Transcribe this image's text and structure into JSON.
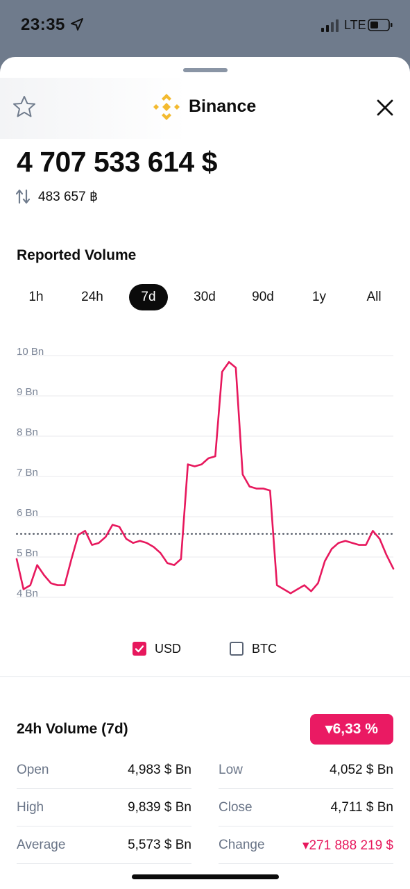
{
  "status_bar": {
    "time": "23:35",
    "network": "LTE"
  },
  "header": {
    "title": "Binance"
  },
  "summary": {
    "price": "4 707 533 614 $",
    "btc_amount": "483 657 ฿"
  },
  "chart_section": {
    "title": "Reported Volume",
    "ranges": [
      "1h",
      "24h",
      "7d",
      "30d",
      "90d",
      "1y",
      "All"
    ],
    "active_range": "7d"
  },
  "chart_data": {
    "type": "line",
    "ylabel": "",
    "ylim": [
      4,
      10
    ],
    "y_ticks": [
      "4 Bn",
      "5 Bn",
      "6 Bn",
      "7 Bn",
      "8 Bn",
      "9 Bn",
      "10 Bn"
    ],
    "reference_line": 5.573,
    "grid": true,
    "series": [
      {
        "name": "USD",
        "color": "#e7185d",
        "values": [
          4.95,
          4.2,
          4.3,
          4.8,
          4.55,
          4.35,
          4.3,
          4.3,
          4.95,
          5.55,
          5.65,
          5.3,
          5.35,
          5.5,
          5.8,
          5.75,
          5.45,
          5.35,
          5.4,
          5.35,
          5.25,
          5.1,
          4.85,
          4.8,
          4.95,
          7.3,
          7.25,
          7.3,
          7.45,
          7.5,
          9.6,
          9.84,
          9.7,
          7.05,
          6.75,
          6.7,
          6.7,
          6.65,
          4.3,
          4.2,
          4.1,
          4.2,
          4.3,
          4.15,
          4.35,
          4.9,
          5.2,
          5.35,
          5.4,
          5.35,
          5.3,
          5.3,
          5.65,
          5.45,
          5.05,
          4.71
        ]
      }
    ]
  },
  "legend": {
    "usd": {
      "label": "USD",
      "checked": true,
      "color": "#e7185d"
    },
    "btc": {
      "label": "BTC",
      "checked": false,
      "color": "#5a6475"
    }
  },
  "stats": {
    "title": "24h Volume (7d)",
    "change_pct": "▾6,33 %",
    "left": [
      {
        "label": "Open",
        "value": "4,983 $ Bn"
      },
      {
        "label": "High",
        "value": "9,839 $ Bn"
      },
      {
        "label": "Average",
        "value": "5,573 $ Bn"
      }
    ],
    "right": [
      {
        "label": "Low",
        "value": "4,052 $ Bn"
      },
      {
        "label": "Close",
        "value": "4,711 $ Bn"
      },
      {
        "label": "Change",
        "value": "▾271 888 219 $"
      }
    ]
  },
  "colors": {
    "accent": "#e7185d",
    "brand": "#f3ba2f",
    "sheet_backdrop": "#6f7b8c"
  }
}
